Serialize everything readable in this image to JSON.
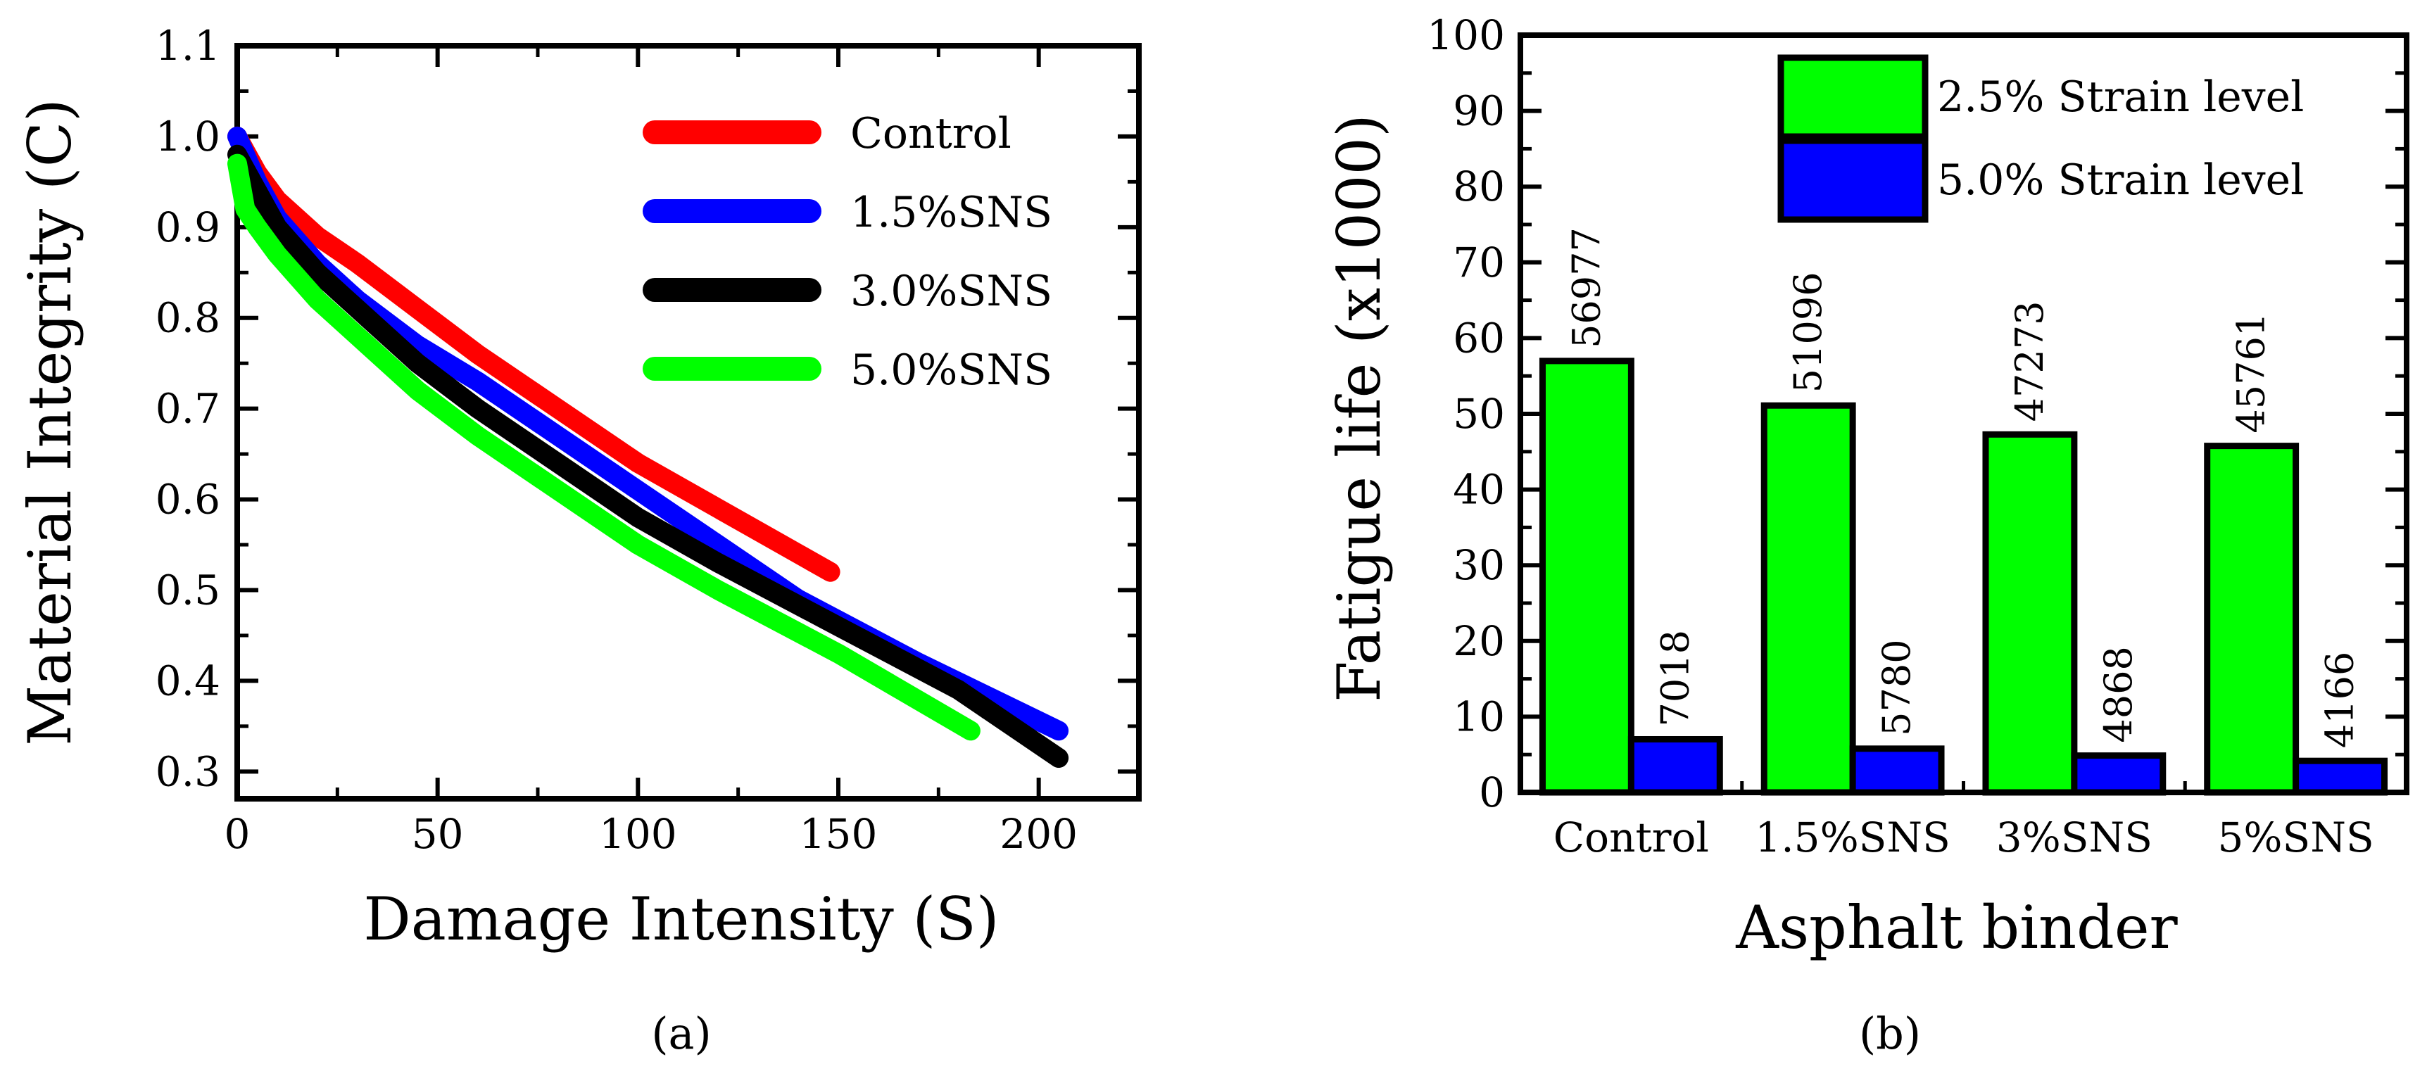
{
  "chart_data": [
    {
      "type": "line",
      "title": "",
      "xlabel": "Damage Intensity (S)",
      "ylabel": "Material Integrity (C)",
      "xlim": [
        0,
        225
      ],
      "ylim": [
        0.27,
        1.1
      ],
      "x_ticks": [
        0,
        50,
        100,
        150,
        200
      ],
      "y_ticks": [
        0.3,
        0.4,
        0.5,
        0.6,
        0.7,
        0.8,
        0.9,
        1.0,
        1.1
      ],
      "x_tick_labels": [
        "0",
        "50",
        "100",
        "150",
        "200"
      ],
      "y_tick_labels": [
        "0.3",
        "0.4",
        "0.5",
        "0.6",
        "0.7",
        "0.8",
        "0.9",
        "1.0",
        "1.1"
      ],
      "legend_position": "top-right",
      "series": [
        {
          "name": "Control",
          "color": "#ff0000",
          "x": [
            0,
            5,
            10,
            20,
            30,
            45,
            60,
            80,
            100,
            120,
            148
          ],
          "y": [
            1.0,
            0.96,
            0.93,
            0.89,
            0.86,
            0.81,
            0.76,
            0.7,
            0.64,
            0.59,
            0.52
          ]
        },
        {
          "name": "1.5%SNS",
          "color": "#0000ff",
          "x": [
            0,
            5,
            10,
            20,
            30,
            45,
            60,
            80,
            100,
            120,
            140,
            170,
            205
          ],
          "y": [
            1.0,
            0.95,
            0.91,
            0.86,
            0.82,
            0.77,
            0.73,
            0.67,
            0.61,
            0.55,
            0.49,
            0.42,
            0.345
          ]
        },
        {
          "name": "3.0%SNS",
          "color": "#000000",
          "x": [
            0,
            5,
            10,
            20,
            30,
            45,
            60,
            80,
            100,
            120,
            150,
            180,
            205
          ],
          "y": [
            0.98,
            0.94,
            0.9,
            0.85,
            0.81,
            0.75,
            0.7,
            0.64,
            0.58,
            0.53,
            0.46,
            0.39,
            0.315
          ]
        },
        {
          "name": "5.0%SNS",
          "color": "#00ff00",
          "x": [
            0,
            2,
            5,
            10,
            20,
            30,
            45,
            60,
            80,
            100,
            120,
            150,
            183
          ],
          "y": [
            0.97,
            0.92,
            0.9,
            0.87,
            0.82,
            0.78,
            0.72,
            0.67,
            0.61,
            0.55,
            0.5,
            0.43,
            0.345
          ]
        }
      ]
    },
    {
      "type": "bar",
      "title": "",
      "xlabel": "Asphalt binder",
      "ylabel": "Fatigue life (x1000)",
      "ylim": [
        0,
        100
      ],
      "y_ticks": [
        0,
        10,
        20,
        30,
        40,
        50,
        60,
        70,
        80,
        90,
        100
      ],
      "y_tick_labels": [
        "0",
        "10",
        "20",
        "30",
        "40",
        "50",
        "60",
        "70",
        "80",
        "90",
        "100"
      ],
      "categories": [
        "Control",
        "1.5%SNS",
        "3%SNS",
        "5%SNS"
      ],
      "legend_position": "top-right",
      "series": [
        {
          "name": "2.5% Strain level",
          "color": "#00ff00",
          "values": [
            56.977,
            51.096,
            47.273,
            45.761
          ],
          "labels": [
            "56977",
            "51096",
            "47273",
            "45761"
          ]
        },
        {
          "name": "5.0% Strain level",
          "color": "#0000ff",
          "values": [
            7.018,
            5.78,
            4.868,
            4.166
          ],
          "labels": [
            "7018",
            "5780",
            "4868",
            "4166"
          ]
        }
      ]
    }
  ],
  "captions": {
    "a": "(a)",
    "b": "(b)"
  }
}
